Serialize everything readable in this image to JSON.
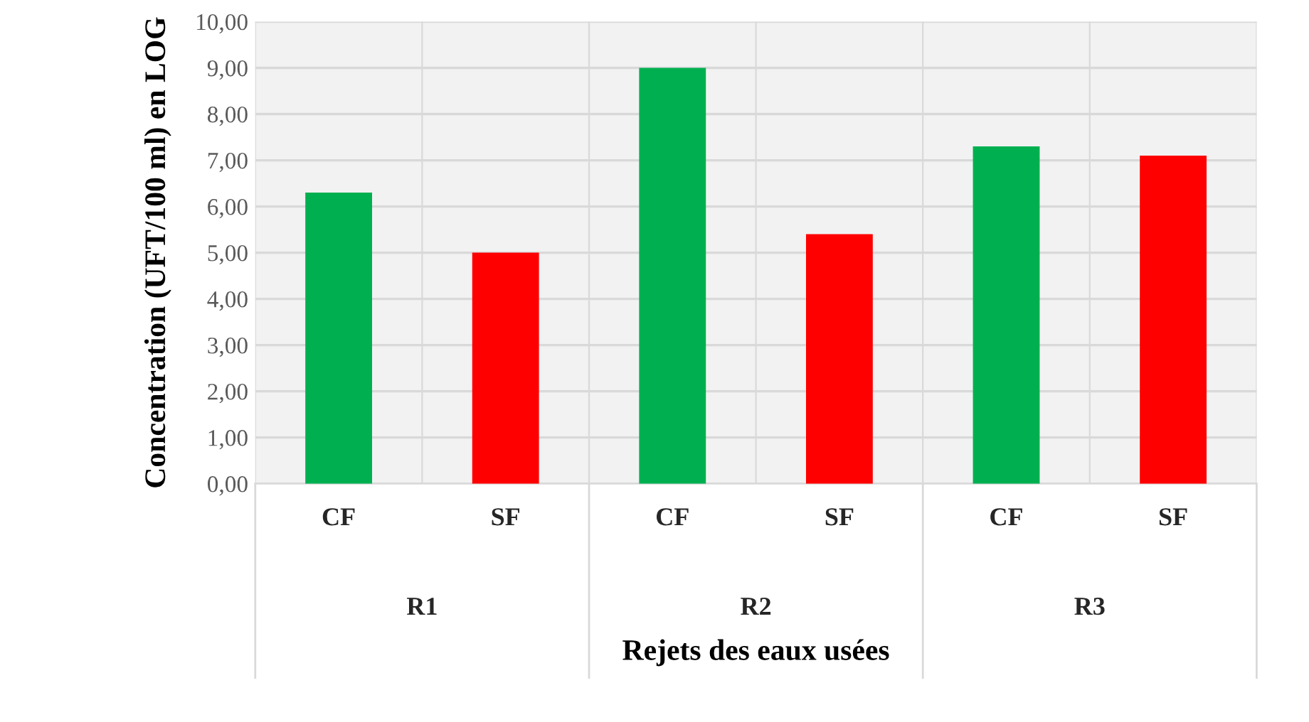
{
  "chart_data": {
    "type": "bar",
    "xlabel": "Rejets des eaux usées",
    "ylabel": "Concentration (UFT/100 ml) en LOG",
    "categories": [
      "CF",
      "SF",
      "CF",
      "SF",
      "CF",
      "SF"
    ],
    "values": [
      6.3,
      5.0,
      9.0,
      5.4,
      7.3,
      7.1
    ],
    "colors": [
      "#00b050",
      "#ff0000",
      "#00b050",
      "#ff0000",
      "#00b050",
      "#ff0000"
    ],
    "annotations": [
      "R1",
      "R2",
      "R3"
    ],
    "ylim": [
      0,
      10
    ],
    "yticks": [
      {
        "value": 0,
        "label": "0,00"
      },
      {
        "value": 1,
        "label": "1,00"
      },
      {
        "value": 2,
        "label": "2,00"
      },
      {
        "value": 3,
        "label": "3,00"
      },
      {
        "value": 4,
        "label": "4,00"
      },
      {
        "value": 5,
        "label": "5,00"
      },
      {
        "value": 6,
        "label": "6,00"
      },
      {
        "value": 7,
        "label": "7,00"
      },
      {
        "value": 8,
        "label": "8,00"
      },
      {
        "value": 9,
        "label": "9,00"
      },
      {
        "value": 10,
        "label": "10,00"
      }
    ],
    "grid": true
  }
}
